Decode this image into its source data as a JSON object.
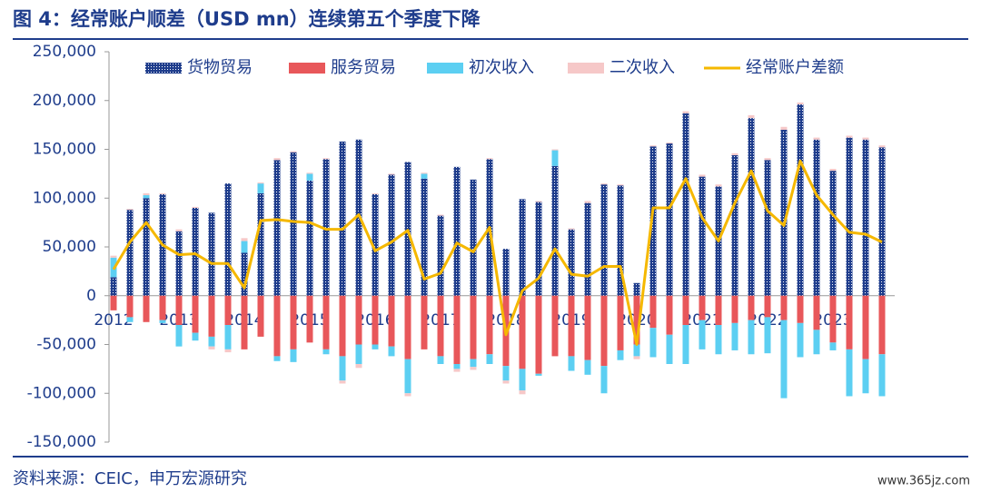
{
  "title": "图 4：经常账户顺差（USD mn）连续第五个季度下降",
  "source": "资料来源：CEIC，申万宏源研究",
  "watermark": "www.365jz.com",
  "chart_data": {
    "type": "bar",
    "categories": [
      "2012",
      null,
      null,
      null,
      "2013",
      null,
      null,
      null,
      "2014",
      null,
      null,
      null,
      "2015",
      null,
      null,
      null,
      "2016",
      null,
      null,
      null,
      "2017",
      null,
      null,
      null,
      "2018",
      null,
      null,
      null,
      "2019",
      null,
      null,
      null,
      "2020",
      null,
      null,
      null,
      "2021",
      null,
      null,
      null,
      "2022",
      null,
      null,
      null,
      "2023",
      null,
      null,
      null
    ],
    "ylim": [
      -150000,
      250000
    ],
    "yticks": [
      {
        "value": -150000,
        "label": "-150,000"
      },
      {
        "value": -100000,
        "label": "-100,000"
      },
      {
        "value": -50000,
        "label": "-50,000"
      },
      0,
      {
        "value": 50000,
        "label": "50,000"
      },
      {
        "value": 100000,
        "label": "100,000"
      },
      {
        "value": 150000,
        "label": "150,000"
      },
      {
        "value": 200000,
        "label": "200,000"
      },
      {
        "value": 250000,
        "label": "250,000"
      }
    ],
    "series": [
      {
        "name": "货物贸易",
        "type": "bar",
        "pattern": "dots",
        "color": "#1f3d8c",
        "values": [
          19000,
          88000,
          100000,
          104000,
          66000,
          90000,
          85000,
          115000,
          44000,
          105000,
          139000,
          147000,
          118000,
          140000,
          158000,
          160000,
          104000,
          124000,
          137000,
          120000,
          82000,
          132000,
          119000,
          140000,
          48000,
          99000,
          96000,
          133000,
          68000,
          95000,
          114000,
          113000,
          13000,
          153000,
          156000,
          187000,
          122000,
          112000,
          144000,
          182000,
          139000,
          170000,
          196000,
          160000,
          128000,
          162000,
          160000,
          152000
        ]
      },
      {
        "name": "服务贸易",
        "type": "bar",
        "color": "#e8575a",
        "values": [
          -15000,
          -22000,
          -27000,
          -25000,
          -30000,
          -38000,
          -42000,
          -30000,
          -55000,
          -42000,
          -62000,
          -55000,
          -48000,
          -55000,
          -62000,
          -50000,
          -50000,
          -52000,
          -65000,
          -55000,
          -62000,
          -70000,
          -65000,
          -60000,
          -72000,
          -75000,
          -80000,
          -62000,
          -62000,
          -66000,
          -72000,
          -56000,
          -50000,
          -33000,
          -40000,
          -30000,
          -25000,
          -30000,
          -28000,
          -25000,
          -22000,
          -25000,
          -28000,
          -35000,
          -48000,
          -55000,
          -65000,
          -60000
        ]
      },
      {
        "name": "初次收入",
        "type": "bar",
        "color": "#5ccff2",
        "values": [
          20000,
          -5000,
          3000,
          -3000,
          -22000,
          -8000,
          -10000,
          -25000,
          12000,
          10000,
          -5000,
          -13000,
          7000,
          -5000,
          -25000,
          -20000,
          -5000,
          -10000,
          -35000,
          5000,
          -8000,
          -5000,
          -8000,
          -10000,
          -15000,
          -22000,
          -2000,
          16000,
          -15000,
          -15000,
          -28000,
          -10000,
          -12000,
          -30000,
          -30000,
          -40000,
          -30000,
          -30000,
          -28000,
          -35000,
          -37000,
          -80000,
          -35000,
          -25000,
          -8000,
          -48000,
          -35000,
          -43000
        ]
      },
      {
        "name": "二次收入",
        "type": "bar",
        "color": "#f6c8c8",
        "values": [
          2000,
          1000,
          2000,
          1000,
          2000,
          1000,
          -3000,
          -3000,
          3000,
          1000,
          2000,
          1000,
          1000,
          1000,
          -3000,
          -4000,
          1000,
          1000,
          -3000,
          1000,
          1000,
          -3000,
          -3000,
          1000,
          -3000,
          -4000,
          1000,
          1000,
          1000,
          2000,
          1000,
          1000,
          -3000,
          1000,
          1000,
          2000,
          2000,
          2000,
          2000,
          3000,
          2000,
          3000,
          2000,
          2000,
          2000,
          2000,
          2000,
          2000
        ]
      },
      {
        "name": "经常账户差额",
        "type": "line",
        "color": "#f5b800",
        "values": [
          27000,
          55000,
          75000,
          52000,
          42000,
          43000,
          33000,
          33000,
          8000,
          77000,
          78000,
          76000,
          75000,
          68000,
          68000,
          83000,
          46000,
          55000,
          67000,
          17000,
          23000,
          54000,
          45000,
          70000,
          -40000,
          5000,
          18000,
          48000,
          22000,
          20000,
          30000,
          30000,
          -50000,
          90000,
          90000,
          120000,
          80000,
          56000,
          95000,
          128000,
          87000,
          72000,
          138000,
          103000,
          83000,
          65000,
          63000,
          55000
        ]
      }
    ]
  }
}
